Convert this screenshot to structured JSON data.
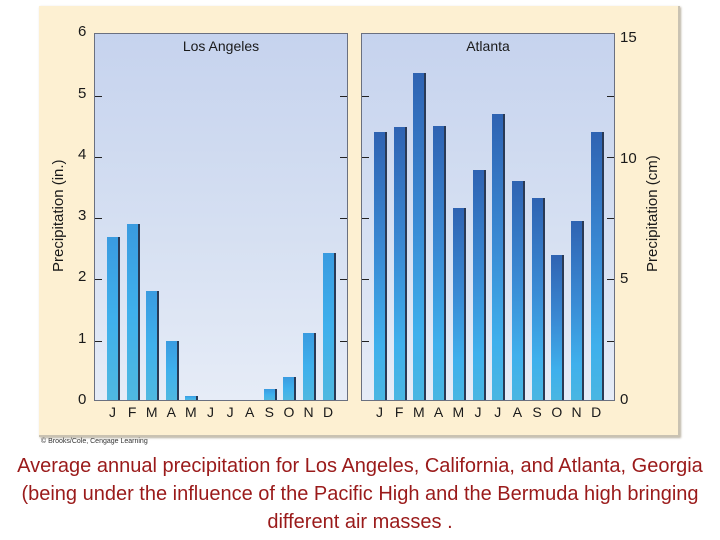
{
  "chart_data": [
    {
      "type": "bar",
      "title": "Los Angeles",
      "categories": [
        "J",
        "F",
        "M",
        "A",
        "M",
        "J",
        "J",
        "A",
        "S",
        "O",
        "N",
        "D"
      ],
      "values": [
        2.66,
        2.87,
        1.78,
        0.96,
        0.07,
        0,
        0,
        0,
        0.18,
        0.38,
        1.09,
        2.4
      ],
      "xlabel": "",
      "ylabel": "Precipitation (in.)",
      "ylim": [
        0,
        6
      ],
      "yticks": [
        "0",
        "1",
        "2",
        "3",
        "4",
        "5",
        "6"
      ],
      "grid": false,
      "legend": null
    },
    {
      "type": "bar",
      "title": "Atlanta",
      "categories": [
        "J",
        "F",
        "M",
        "A",
        "M",
        "J",
        "J",
        "A",
        "S",
        "O",
        "N",
        "D"
      ],
      "values": [
        4.37,
        4.45,
        5.33,
        4.47,
        3.13,
        3.75,
        4.67,
        3.57,
        3.29,
        2.37,
        2.92,
        4.37
      ],
      "xlabel": "",
      "ylabel": "Precipitation (in.)",
      "ylabel_right": "Precipitation (cm)",
      "ylim": [
        0,
        6
      ],
      "ylim_right_cm": [
        0,
        15.24
      ],
      "yticks_right": [
        "0",
        "5",
        "10",
        "15"
      ],
      "grid": false,
      "legend": null
    }
  ],
  "panels": {
    "la": {
      "title": "Los Angeles"
    },
    "atl": {
      "title": "Atlanta"
    }
  },
  "axes": {
    "left_title": "Precipitation (in.)",
    "right_title": "Precipitation (cm)",
    "left_ticks": [
      "0",
      "1",
      "2",
      "3",
      "4",
      "5",
      "6"
    ],
    "right_ticks": [
      "0",
      "5",
      "10",
      "15"
    ],
    "months": [
      "J",
      "F",
      "M",
      "A",
      "M",
      "J",
      "J",
      "A",
      "S",
      "O",
      "N",
      "D"
    ]
  },
  "credit": "© Brooks/Cole, Cengage Learning",
  "caption": "Average annual precipitation for Los Angeles, California, and Atlanta, Georgia (being under the influence of the Pacific High and the Bermuda high bringing different air masses .",
  "colors": {
    "frame_bg": "#fdf0d2",
    "caption": "#9a1a1a",
    "la_bar": "#3fb0ec",
    "atl_bar_top": "#2f63b2"
  }
}
